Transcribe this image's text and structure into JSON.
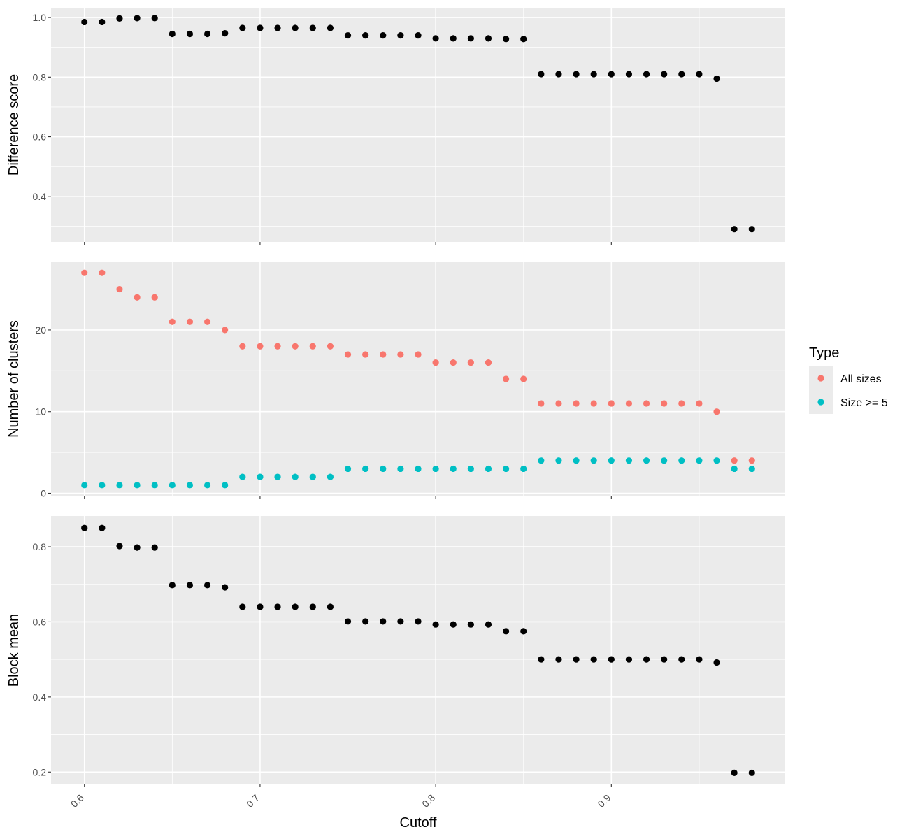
{
  "chart_data": {
    "type": "scatter",
    "x_label": "Cutoff",
    "x_ticks": [
      0.6,
      0.7,
      0.8,
      0.9
    ],
    "x_tick_labels": [
      "0.6",
      "0.7",
      "0.8",
      "0.9"
    ],
    "x_range": [
      0.581,
      0.999
    ],
    "x": [
      0.6,
      0.61,
      0.62,
      0.63,
      0.64,
      0.65,
      0.66,
      0.67,
      0.68,
      0.69,
      0.7,
      0.71,
      0.72,
      0.73,
      0.74,
      0.75,
      0.76,
      0.77,
      0.78,
      0.79,
      0.8,
      0.81,
      0.82,
      0.83,
      0.84,
      0.85,
      0.86,
      0.87,
      0.88,
      0.89,
      0.9,
      0.91,
      0.92,
      0.93,
      0.94,
      0.95,
      0.96,
      0.97,
      0.98
    ],
    "grid": true,
    "legend": {
      "title": "Type",
      "position": "right",
      "items": [
        {
          "label": "All sizes",
          "color": "#F8766D"
        },
        {
          "label": "Size >= 5",
          "color": "#00BFC4"
        }
      ]
    },
    "panels": [
      {
        "ylabel": "Difference score",
        "y_ticks": [
          0.4,
          0.6,
          0.8,
          1.0
        ],
        "y_tick_labels": [
          "0.4",
          "0.6",
          "0.8",
          "1.0"
        ],
        "y_range": [
          0.247,
          1.033
        ],
        "series": [
          {
            "color": "#000000",
            "values": [
              0.985,
              0.985,
              0.997,
              0.998,
              0.998,
              0.945,
              0.945,
              0.945,
              0.947,
              0.965,
              0.965,
              0.965,
              0.965,
              0.965,
              0.965,
              0.94,
              0.94,
              0.94,
              0.94,
              0.94,
              0.93,
              0.93,
              0.93,
              0.93,
              0.928,
              0.928,
              0.81,
              0.81,
              0.81,
              0.81,
              0.81,
              0.81,
              0.81,
              0.81,
              0.81,
              0.81,
              0.795,
              0.29,
              0.29
            ]
          }
        ]
      },
      {
        "ylabel": "Number of clusters",
        "y_ticks": [
          0,
          10,
          20
        ],
        "y_tick_labels": [
          "0",
          "10",
          "20"
        ],
        "y_range": [
          -0.3,
          28.3
        ],
        "series": [
          {
            "name": "All sizes",
            "color": "#F8766D",
            "values": [
              27,
              27,
              25,
              24,
              24,
              21,
              21,
              21,
              20,
              18,
              18,
              18,
              18,
              18,
              18,
              17,
              17,
              17,
              17,
              17,
              16,
              16,
              16,
              16,
              14,
              14,
              11,
              11,
              11,
              11,
              11,
              11,
              11,
              11,
              11,
              11,
              10,
              4,
              4
            ]
          },
          {
            "name": "Size >= 5",
            "color": "#00BFC4",
            "values": [
              1,
              1,
              1,
              1,
              1,
              1,
              1,
              1,
              1,
              2,
              2,
              2,
              2,
              2,
              2,
              3,
              3,
              3,
              3,
              3,
              3,
              3,
              3,
              3,
              3,
              3,
              4,
              4,
              4,
              4,
              4,
              4,
              4,
              4,
              4,
              4,
              4,
              3,
              3
            ]
          }
        ]
      },
      {
        "ylabel": "Block mean",
        "y_ticks": [
          0.2,
          0.4,
          0.6,
          0.8
        ],
        "y_tick_labels": [
          "0.2",
          "0.4",
          "0.6",
          "0.8"
        ],
        "y_range": [
          0.167,
          0.882
        ],
        "series": [
          {
            "color": "#000000",
            "values": [
              0.85,
              0.85,
              0.802,
              0.798,
              0.798,
              0.698,
              0.698,
              0.698,
              0.692,
              0.64,
              0.64,
              0.64,
              0.64,
              0.64,
              0.64,
              0.601,
              0.601,
              0.601,
              0.601,
              0.601,
              0.593,
              0.593,
              0.593,
              0.593,
              0.575,
              0.575,
              0.5,
              0.5,
              0.5,
              0.5,
              0.5,
              0.5,
              0.5,
              0.5,
              0.5,
              0.5,
              0.492,
              0.198,
              0.198
            ]
          }
        ]
      }
    ]
  }
}
